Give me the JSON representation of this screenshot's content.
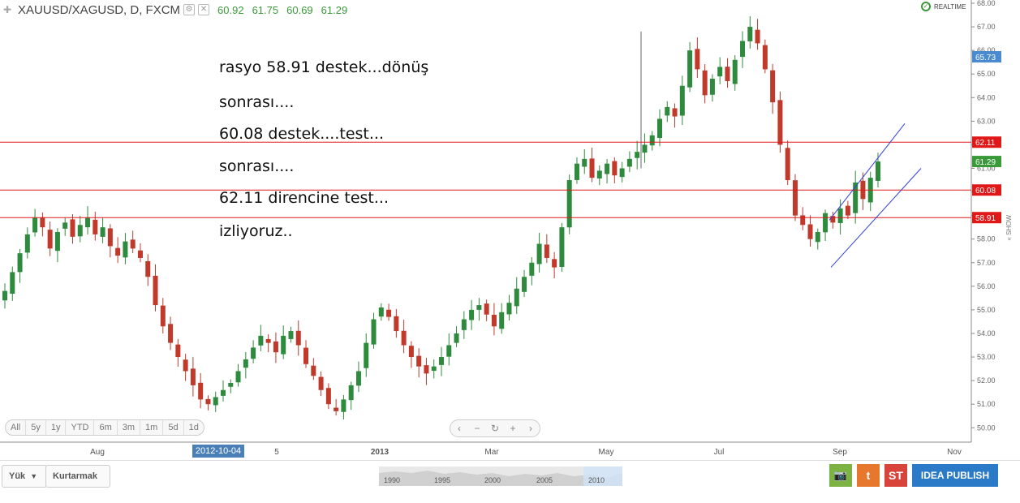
{
  "header": {
    "symbol": "XAUUSD/XAGUSD, D, FXCM",
    "ohlc": [
      "60.92",
      "61.75",
      "60.69",
      "61.29"
    ],
    "realtime_label": "REALTIME"
  },
  "annotation_lines": [
    "rasyo 58.91 destek...dönüş",
    "sonrası....",
    "60.08 destek....test...",
    "sonrası....",
    "62.11 direncine test...",
    "izliyoruz.."
  ],
  "price_axis": {
    "ticks": [
      "68.00",
      "67.00",
      "66.00",
      "65.00",
      "64.00",
      "63.00",
      "62.00",
      "61.00",
      "60.00",
      "59.00",
      "58.00",
      "57.00",
      "56.00",
      "55.00",
      "54.00",
      "53.00",
      "52.00",
      "51.00",
      "50.00"
    ],
    "badges": [
      {
        "label": "65.73",
        "value": 65.73,
        "color": "#4a8ad0"
      },
      {
        "label": "62.11",
        "value": 62.11,
        "color": "#e01818"
      },
      {
        "label": "61.29",
        "value": 61.29,
        "color": "#3a9a3a"
      },
      {
        "label": "60.08",
        "value": 60.08,
        "color": "#e01818"
      },
      {
        "label": "58.91",
        "value": 58.91,
        "color": "#e01818"
      }
    ]
  },
  "time_axis": {
    "labels": [
      {
        "text": "Aug"
      },
      {
        "text": "5"
      },
      {
        "text": "2013"
      },
      {
        "text": "Mar"
      },
      {
        "text": "May"
      },
      {
        "text": "Jul"
      },
      {
        "text": "Sep"
      },
      {
        "text": "Nov"
      }
    ],
    "cursor_date": "2012-10-04"
  },
  "horizontal_levels": [
    62.11,
    60.08,
    58.91
  ],
  "range_buttons": [
    "All",
    "5y",
    "1y",
    "YTD",
    "6m",
    "3m",
    "1m",
    "5d",
    "1d"
  ],
  "nav_buttons": [
    "‹",
    "−",
    "↻",
    "+",
    "›"
  ],
  "bottom": {
    "load_label": "Yük",
    "save_label": "Kurtarmak",
    "overview_years": [
      "1990",
      "1995",
      "2000",
      "2005",
      "2010"
    ],
    "camera_icon": "📷",
    "twitter_icon": "t",
    "st_label": "ST",
    "publish_label": "IDEA PUBLISH"
  },
  "show_label": "« SHOW",
  "colors": {
    "up": "#2e8b3e",
    "down": "#c0392b",
    "level": "#e01818",
    "channel": "#2f3fdc"
  },
  "chart_data": {
    "type": "candlestick",
    "symbol": "XAUUSD/XAGUSD",
    "interval": "D",
    "ylim": [
      49.6,
      68.2
    ],
    "closes": [
      55.8,
      56.6,
      57.4,
      58.2,
      58.9,
      58.5,
      57.6,
      58.3,
      58.7,
      58.1,
      58.6,
      58.9,
      58.2,
      58.5,
      57.7,
      57.3,
      57.9,
      57.6,
      57.2,
      56.4,
      55.2,
      54.3,
      53.6,
      53.0,
      52.4,
      51.8,
      51.2,
      51.0,
      51.3,
      51.6,
      51.9,
      52.4,
      52.9,
      53.4,
      53.9,
      53.6,
      53.2,
      53.9,
      54.1,
      53.5,
      52.7,
      52.2,
      51.6,
      51.0,
      50.7,
      51.2,
      51.8,
      52.4,
      53.6,
      54.6,
      55.1,
      54.7,
      54.1,
      53.5,
      53.0,
      52.6,
      52.3,
      52.6,
      53.0,
      53.5,
      54.0,
      54.6,
      55.0,
      55.2,
      54.8,
      54.3,
      54.9,
      55.3,
      55.9,
      56.4,
      57.0,
      57.8,
      57.2,
      56.8,
      58.5,
      60.5,
      61.2,
      61.4,
      60.6,
      60.9,
      61.2,
      60.7,
      61.0,
      61.4,
      61.7,
      62.0,
      62.4,
      63.1,
      63.6,
      63.2,
      64.5,
      66.0,
      65.2,
      64.1,
      64.8,
      65.3,
      64.7,
      65.6,
      66.4,
      67.0,
      66.3,
      65.2,
      63.8,
      62.0,
      60.5,
      59.0,
      58.6,
      58.0,
      58.3,
      59.1,
      58.7,
      59.3,
      59.0,
      60.4,
      59.7,
      60.6,
      61.29
    ]
  }
}
